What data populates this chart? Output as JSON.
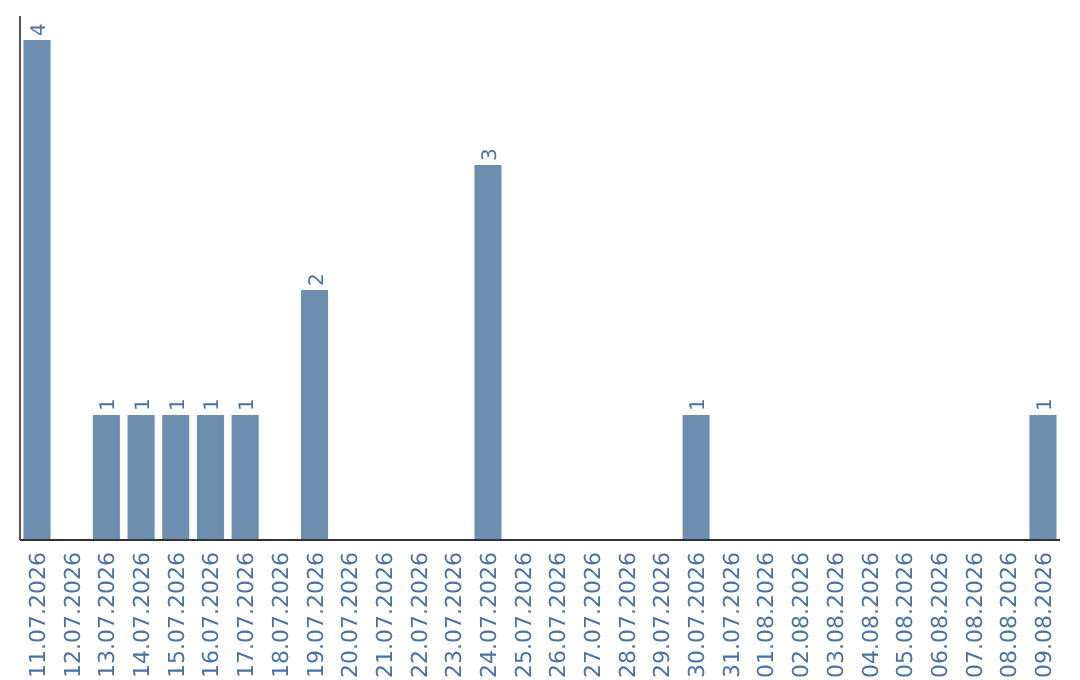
{
  "chart_data": {
    "type": "bar",
    "categories": [
      "11.07.2026",
      "12.07.2026",
      "13.07.2026",
      "14.07.2026",
      "15.07.2026",
      "16.07.2026",
      "17.07.2026",
      "18.07.2026",
      "19.07.2026",
      "20.07.2026",
      "21.07.2026",
      "22.07.2026",
      "23.07.2026",
      "24.07.2026",
      "25.07.2026",
      "26.07.2026",
      "27.07.2026",
      "28.07.2026",
      "29.07.2026",
      "30.07.2026",
      "31.07.2026",
      "01.08.2026",
      "02.08.2026",
      "03.08.2026",
      "04.08.2026",
      "05.08.2026",
      "06.08.2026",
      "07.08.2026",
      "08.08.2026",
      "09.08.2026"
    ],
    "values": [
      4,
      0,
      1,
      1,
      1,
      1,
      1,
      0,
      2,
      0,
      0,
      0,
      0,
      3,
      0,
      0,
      0,
      0,
      0,
      1,
      0,
      0,
      0,
      0,
      0,
      0,
      0,
      0,
      0,
      1
    ],
    "value_labels": [
      "4",
      null,
      "1",
      "1",
      "1",
      "1",
      "1",
      null,
      "2",
      null,
      null,
      null,
      null,
      "3",
      null,
      null,
      null,
      null,
      null,
      "1",
      null,
      null,
      null,
      null,
      null,
      null,
      null,
      null,
      null,
      "1"
    ],
    "color": "#6e8eb0",
    "ylim": [
      0,
      4
    ],
    "tick_labels": "x"
  }
}
